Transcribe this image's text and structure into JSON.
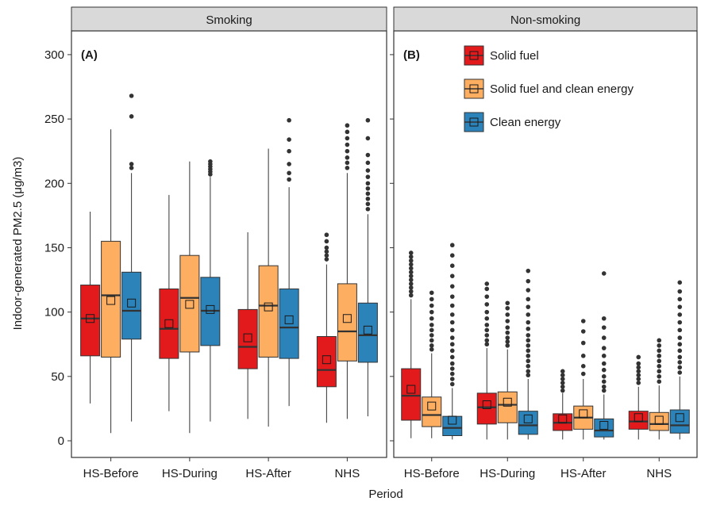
{
  "chart_data": {
    "type": "box",
    "xlabel": "Period",
    "ylabel": "Indoor-generated PM2.5 (μg/m3)",
    "ylim": [
      -15,
      325
    ],
    "yticks": [
      0,
      50,
      100,
      150,
      200,
      250,
      300
    ],
    "categories": [
      "HS-Before",
      "HS-During",
      "HS-After",
      "NHS"
    ],
    "legend": {
      "placement": "top-right of panel B",
      "entries": [
        "Solid fuel",
        "Solid fuel and clean energy",
        "Clean energy"
      ]
    },
    "series_colors": [
      "#e31a1c",
      "#fdae61",
      "#2b83ba"
    ],
    "panels": [
      {
        "strip": "Smoking",
        "tag": "(A)",
        "groups": [
          {
            "category": "HS-Before",
            "boxes": [
              {
                "series": "Solid fuel",
                "whislo": 29,
                "q1": 66,
                "med": 95,
                "q3": 121,
                "whishi": 178,
                "mean": 95,
                "fliers": []
              },
              {
                "series": "Solid fuel and clean energy",
                "whislo": 6,
                "q1": 65,
                "med": 113,
                "q3": 155,
                "whishi": 242,
                "mean": 109,
                "fliers": []
              },
              {
                "series": "Clean energy",
                "whislo": 15,
                "q1": 79,
                "med": 101,
                "q3": 131,
                "whishi": 208,
                "mean": 107,
                "fliers": [
                  212,
                  215,
                  252,
                  268
                ]
              }
            ]
          },
          {
            "category": "HS-During",
            "boxes": [
              {
                "series": "Solid fuel",
                "whislo": 23,
                "q1": 64,
                "med": 87,
                "q3": 118,
                "whishi": 191,
                "mean": 91,
                "fliers": []
              },
              {
                "series": "Solid fuel and clean energy",
                "whislo": 6,
                "q1": 69,
                "med": 111,
                "q3": 144,
                "whishi": 217,
                "mean": 106,
                "fliers": []
              },
              {
                "series": "Clean energy",
                "whislo": 15,
                "q1": 74,
                "med": 101,
                "q3": 127,
                "whishi": 205,
                "mean": 102,
                "fliers": [
                  207,
                  209,
                  211,
                  213,
                  215,
                  217
                ]
              }
            ]
          },
          {
            "category": "HS-After",
            "boxes": [
              {
                "series": "Solid fuel",
                "whislo": 17,
                "q1": 56,
                "med": 73,
                "q3": 102,
                "whishi": 162,
                "mean": 80,
                "fliers": []
              },
              {
                "series": "Solid fuel and clean energy",
                "whislo": 11,
                "q1": 65,
                "med": 105,
                "q3": 136,
                "whishi": 227,
                "mean": 104,
                "fliers": []
              },
              {
                "series": "Clean energy",
                "whislo": 27,
                "q1": 64,
                "med": 88,
                "q3": 118,
                "whishi": 197,
                "mean": 94,
                "fliers": [
                  203,
                  208,
                  215,
                  225,
                  234,
                  249
                ]
              }
            ]
          },
          {
            "category": "NHS",
            "boxes": [
              {
                "series": "Solid fuel",
                "whislo": 14,
                "q1": 42,
                "med": 55,
                "q3": 81,
                "whishi": 137,
                "mean": 63,
                "fliers": [
                  141,
                  144,
                  147,
                  150,
                  155,
                  160
                ]
              },
              {
                "series": "Solid fuel and clean energy",
                "whislo": 17,
                "q1": 62,
                "med": 85,
                "q3": 122,
                "whishi": 208,
                "mean": 95,
                "fliers": [
                  212,
                  216,
                  220,
                  225,
                  230,
                  235,
                  240,
                  245
                ]
              },
              {
                "series": "Clean energy",
                "whislo": 19,
                "q1": 61,
                "med": 82,
                "q3": 107,
                "whishi": 176,
                "mean": 86,
                "fliers": [
                  180,
                  184,
                  188,
                  192,
                  196,
                  200,
                  205,
                  210,
                  216,
                  222,
                  235,
                  249
                ]
              }
            ]
          }
        ]
      },
      {
        "strip": "Non-smoking",
        "tag": "(B)",
        "groups": [
          {
            "category": "HS-Before",
            "boxes": [
              {
                "series": "Solid fuel",
                "whislo": 2,
                "q1": 16,
                "med": 35,
                "q3": 56,
                "whishi": 110,
                "mean": 40,
                "fliers": [
                  113,
                  116,
                  119,
                  122,
                  125,
                  128,
                  131,
                  134,
                  137,
                  140,
                  143,
                  146
                ]
              },
              {
                "series": "Solid fuel and clean energy",
                "whislo": 2,
                "q1": 11,
                "med": 20,
                "q3": 34,
                "whishi": 68,
                "mean": 27,
                "fliers": [
                  71,
                  74,
                  78,
                  82,
                  86,
                  90,
                  95,
                  100,
                  105,
                  110,
                  115
                ]
              },
              {
                "series": "Clean energy",
                "whislo": 1,
                "q1": 4,
                "med": 10,
                "q3": 19,
                "whishi": 41,
                "mean": 16,
                "fliers": [
                  44,
                  48,
                  52,
                  56,
                  60,
                  65,
                  70,
                  75,
                  80,
                  86,
                  92,
                  98,
                  105,
                  112,
                  120,
                  128,
                  136,
                  144,
                  152
                ]
              }
            ]
          },
          {
            "category": "HS-During",
            "boxes": [
              {
                "series": "Solid fuel",
                "whislo": 1,
                "q1": 13,
                "med": 26,
                "q3": 37,
                "whishi": 72,
                "mean": 28,
                "fliers": [
                  75,
                  78,
                  82,
                  86,
                  90,
                  95,
                  100,
                  106,
                  112,
                  118,
                  122
                ]
              },
              {
                "series": "Solid fuel and clean energy",
                "whislo": 1,
                "q1": 14,
                "med": 28,
                "q3": 38,
                "whishi": 71,
                "mean": 30,
                "fliers": [
                  74,
                  77,
                  80,
                  84,
                  88,
                  93,
                  98,
                  103,
                  107
                ]
              },
              {
                "series": "Clean energy",
                "whislo": 1,
                "q1": 5,
                "med": 12,
                "q3": 23,
                "whishi": 48,
                "mean": 17,
                "fliers": [
                  51,
                  54,
                  58,
                  62,
                  66,
                  70,
                  74,
                  78,
                  82,
                  87,
                  92,
                  98,
                  104,
                  110,
                  117,
                  124,
                  132
                ]
              }
            ]
          },
          {
            "category": "HS-After",
            "boxes": [
              {
                "series": "Solid fuel",
                "whislo": 1,
                "q1": 8,
                "med": 14,
                "q3": 21,
                "whishi": 37,
                "mean": 17,
                "fliers": [
                  39,
                  42,
                  45,
                  48,
                  51,
                  54
                ]
              },
              {
                "series": "Solid fuel and clean energy",
                "whislo": 1,
                "q1": 9,
                "med": 18,
                "q3": 27,
                "whishi": 48,
                "mean": 21,
                "fliers": [
                  52,
                  58,
                  66,
                  76,
                  85,
                  93
                ]
              },
              {
                "series": "Clean energy",
                "whislo": 1,
                "q1": 3,
                "med": 8,
                "q3": 17,
                "whishi": 36,
                "mean": 12,
                "fliers": [
                  39,
                  42,
                  46,
                  50,
                  55,
                  60,
                  66,
                  72,
                  80,
                  88,
                  95,
                  130
                ]
              }
            ]
          },
          {
            "category": "NHS",
            "boxes": [
              {
                "series": "Solid fuel",
                "whislo": 1,
                "q1": 9,
                "med": 15,
                "q3": 23,
                "whishi": 42,
                "mean": 18,
                "fliers": [
                  45,
                  48,
                  51,
                  54,
                  57,
                  60,
                  65
                ]
              },
              {
                "series": "Solid fuel and clean energy",
                "whislo": 1,
                "q1": 8,
                "med": 13,
                "q3": 22,
                "whishi": 43,
                "mean": 16,
                "fliers": [
                  46,
                  50,
                  54,
                  58,
                  62,
                  66,
                  70,
                  74,
                  78
                ]
              },
              {
                "series": "Clean energy",
                "whislo": 1,
                "q1": 6,
                "med": 12,
                "q3": 24,
                "whishi": 50,
                "mean": 18,
                "fliers": [
                  53,
                  57,
                  61,
                  65,
                  70,
                  75,
                  80,
                  86,
                  92,
                  98,
                  104,
                  110,
                  116,
                  123
                ]
              }
            ]
          }
        ]
      }
    ]
  }
}
